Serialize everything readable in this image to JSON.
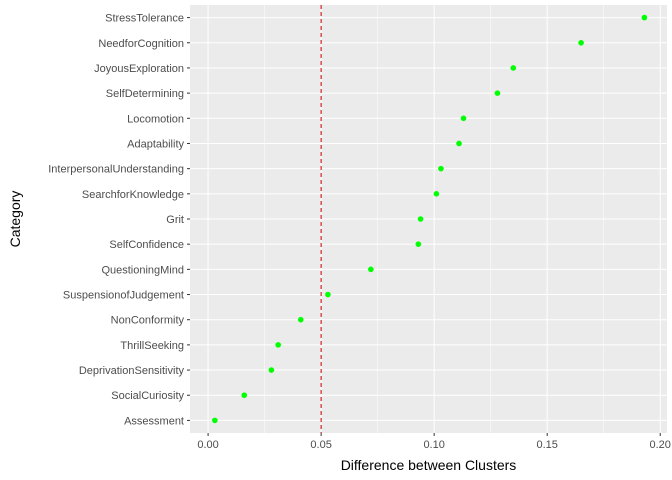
{
  "chart_data": {
    "type": "scatter",
    "title": "",
    "xlabel": "Difference between Clusters",
    "ylabel": "Category",
    "xlim": [
      -0.008,
      0.203
    ],
    "x_ticks": [
      0.0,
      0.05,
      0.1,
      0.15,
      0.2
    ],
    "x_tick_labels": [
      "0.00",
      "0.05",
      "0.10",
      "0.15",
      "0.20"
    ],
    "reference_line": {
      "x": 0.05,
      "color": "#cc0000",
      "style": "dashed"
    },
    "categories": [
      "StressTolerance",
      "NeedforCognition",
      "JoyousExploration",
      "SelfDetermining",
      "Locomotion",
      "Adaptability",
      "InterpersonalUnderstanding",
      "SearchforKnowledge",
      "Grit",
      "SelfConfidence",
      "QuestioningMind",
      "SuspensionofJudgement",
      "NonConformity",
      "ThrillSeeking",
      "DeprivationSensitivity",
      "SocialCuriosity",
      "Assessment"
    ],
    "values": [
      0.193,
      0.165,
      0.135,
      0.128,
      0.113,
      0.111,
      0.103,
      0.101,
      0.094,
      0.093,
      0.072,
      0.053,
      0.041,
      0.031,
      0.028,
      0.016,
      0.003
    ],
    "point_color": "#00ff00",
    "panel_background": "#ebebeb",
    "grid_color": "#ffffff",
    "grid": true,
    "legend": "none"
  }
}
